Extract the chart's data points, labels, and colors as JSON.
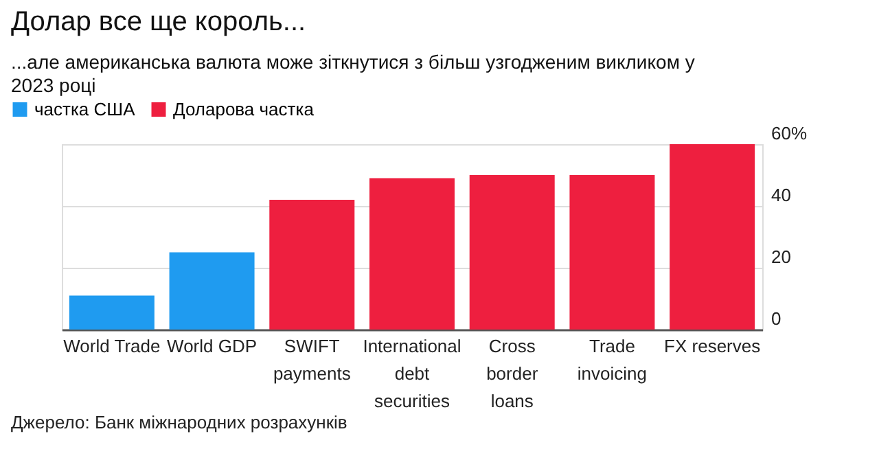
{
  "chart_data": {
    "type": "bar",
    "title": "Долар все ще король...",
    "subtitle": "...але американська валюта може зіткнутися з більш узгодженим викликом у 2023 році",
    "categories": [
      "World Trade",
      "World GDP",
      "SWIFT payments",
      "International debt securities",
      "Cross border loans",
      "Trade invoicing",
      "FX reserves"
    ],
    "series": [
      {
        "name": "частка США",
        "color": "#1f9bf0",
        "values": [
          11,
          25,
          null,
          null,
          null,
          null,
          null
        ]
      },
      {
        "name": "Доларова частка",
        "color": "#ee1f3f",
        "values": [
          null,
          null,
          42,
          49,
          50,
          50,
          60
        ]
      }
    ],
    "ylim": [
      0,
      60
    ],
    "yticks": [
      0,
      20,
      40,
      {
        "value": 60,
        "label": "60%"
      }
    ],
    "grid": "y",
    "legend": "top left",
    "annotations": [
      "Джерело: Банк міжнародних розрахунків"
    ]
  }
}
